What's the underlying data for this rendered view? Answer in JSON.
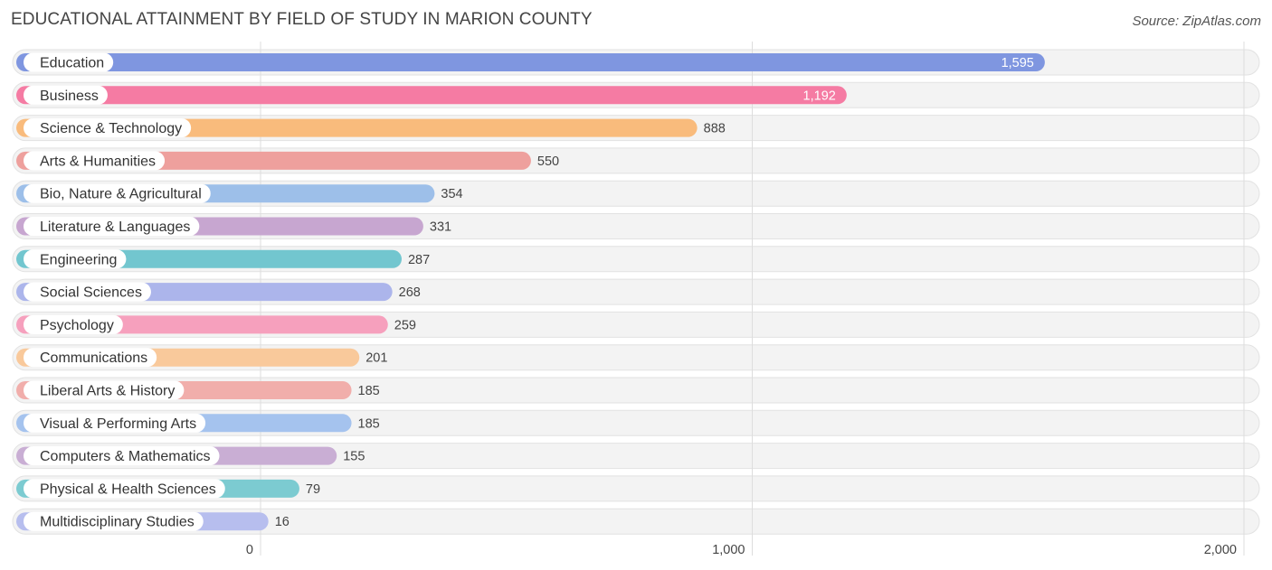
{
  "title": "EDUCATIONAL ATTAINMENT BY FIELD OF STUDY IN MARION COUNTY",
  "source": "Source: ZipAtlas.com",
  "chart_data": {
    "type": "bar",
    "orientation": "horizontal",
    "title": "EDUCATIONAL ATTAINMENT BY FIELD OF STUDY IN MARION COUNTY",
    "xlim": [
      0,
      2000
    ],
    "ticks": [
      0,
      1000,
      2000
    ],
    "tick_labels": [
      "0",
      "1,000",
      "2,000"
    ],
    "grid": true,
    "categories": [
      "Education",
      "Business",
      "Science & Technology",
      "Arts & Humanities",
      "Bio, Nature & Agricultural",
      "Literature & Languages",
      "Engineering",
      "Social Sciences",
      "Psychology",
      "Communications",
      "Liberal Arts & History",
      "Visual & Performing Arts",
      "Computers & Mathematics",
      "Physical & Health Sciences",
      "Multidisciplinary Studies"
    ],
    "values": [
      1595,
      1192,
      888,
      550,
      354,
      331,
      287,
      268,
      259,
      201,
      185,
      185,
      155,
      79,
      16
    ],
    "value_labels": [
      "1,595",
      "1,192",
      "888",
      "550",
      "354",
      "331",
      "287",
      "268",
      "259",
      "201",
      "185",
      "185",
      "155",
      "79",
      "16"
    ],
    "colors": [
      "#7f96e0",
      "#f57ba3",
      "#f9bb7c",
      "#eea09d",
      "#9dbfe9",
      "#c7a6d0",
      "#72c6cf",
      "#acb5eb",
      "#f6a0bd",
      "#f9c99b",
      "#f1aeab",
      "#a5c3ee",
      "#c9aed4",
      "#7ccbd1",
      "#b7beee"
    ]
  }
}
